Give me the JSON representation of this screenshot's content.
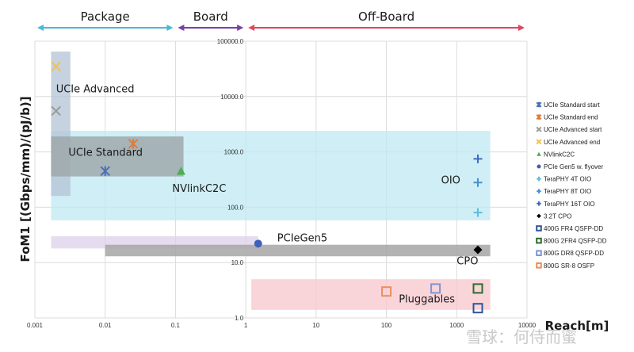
{
  "watermark": "雪球：何侍而蜜",
  "chart_data": {
    "type": "scatter",
    "xscale": "log",
    "yscale": "log",
    "xlim": [
      0.001,
      10000
    ],
    "ylim": [
      1,
      100000
    ],
    "xlabel": "Reach[m]",
    "ylabel": "FoM1 [(Gbps/mm)/(pJ/b)]",
    "grid": true,
    "legend_position": "right",
    "xticks": [
      {
        "v": 0.001,
        "label": "0.001"
      },
      {
        "v": 0.01,
        "label": "0.01"
      },
      {
        "v": 0.1,
        "label": "0.1"
      },
      {
        "v": 1,
        "label": "1"
      },
      {
        "v": 10,
        "label": "10"
      },
      {
        "v": 100,
        "label": "100"
      },
      {
        "v": 1000,
        "label": "1000"
      },
      {
        "v": 10000,
        "label": "10000"
      }
    ],
    "yticks": [
      {
        "v": 1,
        "label": "1.0"
      },
      {
        "v": 10,
        "label": "10.0"
      },
      {
        "v": 100,
        "label": "100.0"
      },
      {
        "v": 1000,
        "label": "1000.0"
      },
      {
        "v": 10000,
        "label": "10000.0"
      },
      {
        "v": 100000,
        "label": "100000.0"
      }
    ],
    "regions": [
      {
        "label": "Package",
        "x_from": 0.001,
        "x_to": 0.1,
        "color": "#4bb8d8"
      },
      {
        "label": "Board",
        "x_from": 0.1,
        "x_to": 1,
        "color": "#7b3fa6"
      },
      {
        "label": "Off-Board",
        "x_from": 1,
        "x_to": 10000,
        "color": "#e0475e"
      }
    ],
    "bands": [
      {
        "name": "OIO",
        "x": [
          0.0017,
          3000
        ],
        "y": [
          58,
          2400
        ],
        "color": "#bfe8f2"
      },
      {
        "name": "UCIe Advanced",
        "x": [
          0.0017,
          0.0032
        ],
        "y": [
          160,
          65000
        ],
        "color": "#b3c3d4"
      },
      {
        "name": "UCIe Standard",
        "x": [
          0.0017,
          0.13
        ],
        "y": [
          360,
          1900
        ],
        "color": "#9fa8ac"
      },
      {
        "name": "PCIeGen5",
        "x": [
          0.0017,
          1.5
        ],
        "y": [
          18,
          30
        ],
        "color": "#ddd0ea"
      },
      {
        "name": "CPO",
        "x": [
          0.01,
          3000
        ],
        "y": [
          13,
          21
        ],
        "color": "#a6a6a6"
      },
      {
        "name": "Pluggables",
        "x": [
          1.2,
          3000
        ],
        "y": [
          1.4,
          5
        ],
        "color": "#f7c5cc"
      }
    ],
    "series": [
      {
        "name": "UCIe Standard start",
        "marker": "asterisk",
        "color": "#4a6fb5",
        "points": [
          {
            "x": 0.01,
            "y": 450
          }
        ]
      },
      {
        "name": "UCIe Standard end",
        "marker": "asterisk",
        "color": "#e07b39",
        "points": [
          {
            "x": 0.025,
            "y": 1400
          }
        ]
      },
      {
        "name": "UCIe Advanced start",
        "marker": "x",
        "color": "#9a9a9a",
        "points": [
          {
            "x": 0.002,
            "y": 5500
          }
        ]
      },
      {
        "name": "UCIe Advanced end",
        "marker": "x",
        "color": "#f2c14e",
        "points": [
          {
            "x": 0.002,
            "y": 35000
          }
        ]
      },
      {
        "name": "NVlinkC2C",
        "marker": "triangle",
        "color": "#4caf50",
        "points": [
          {
            "x": 0.12,
            "y": 450
          }
        ]
      },
      {
        "name": "PCIe Gen5 w. flyover",
        "marker": "circle",
        "color": "#3f5fb8",
        "points": [
          {
            "x": 1.5,
            "y": 22
          }
        ]
      },
      {
        "name": "TeraPHY 4T OIO",
        "marker": "plus",
        "color": "#5bbde0",
        "points": [
          {
            "x": 2000,
            "y": 80
          }
        ]
      },
      {
        "name": "TeraPHY 8T OIO",
        "marker": "plus",
        "color": "#4a8fd0",
        "points": [
          {
            "x": 2000,
            "y": 280
          }
        ]
      },
      {
        "name": "TeraPHY 16T OIO",
        "marker": "plus",
        "color": "#3d6cc0",
        "points": [
          {
            "x": 2000,
            "y": 750
          }
        ]
      },
      {
        "name": "3.2T CPO",
        "marker": "diamond",
        "color": "#000000",
        "points": [
          {
            "x": 2000,
            "y": 17
          }
        ]
      },
      {
        "name": "400G FR4 QSFP-DD",
        "marker": "square",
        "color": "#2f5597",
        "points": [
          {
            "x": 2000,
            "y": 1.5
          }
        ]
      },
      {
        "name": "800G 2FR4 QSFP-DD",
        "marker": "square",
        "color": "#2e6b2e",
        "points": [
          {
            "x": 2000,
            "y": 3.4
          }
        ]
      },
      {
        "name": "800G DR8 QSFP-DD",
        "marker": "square",
        "color": "#7e95d6",
        "points": [
          {
            "x": 500,
            "y": 3.4
          }
        ]
      },
      {
        "name": "800G SR-8 OSFP",
        "marker": "square",
        "color": "#ed8e5c",
        "points": [
          {
            "x": 100,
            "y": 3
          }
        ]
      }
    ],
    "annotations": [
      {
        "text": "UCIe Advanced",
        "x": 0.002,
        "y": 12000
      },
      {
        "text": "UCIe Standard",
        "x": 0.003,
        "y": 850
      },
      {
        "text": "NVlinkC2C",
        "x": 0.09,
        "y": 190
      },
      {
        "text": "OIO",
        "x": 600,
        "y": 270
      },
      {
        "text": "PCIeGen5",
        "x": 2.8,
        "y": 24
      },
      {
        "text": "CPO",
        "x": 1000,
        "y": 9.3
      },
      {
        "text": "Pluggables",
        "x": 150,
        "y": 1.9
      }
    ]
  }
}
